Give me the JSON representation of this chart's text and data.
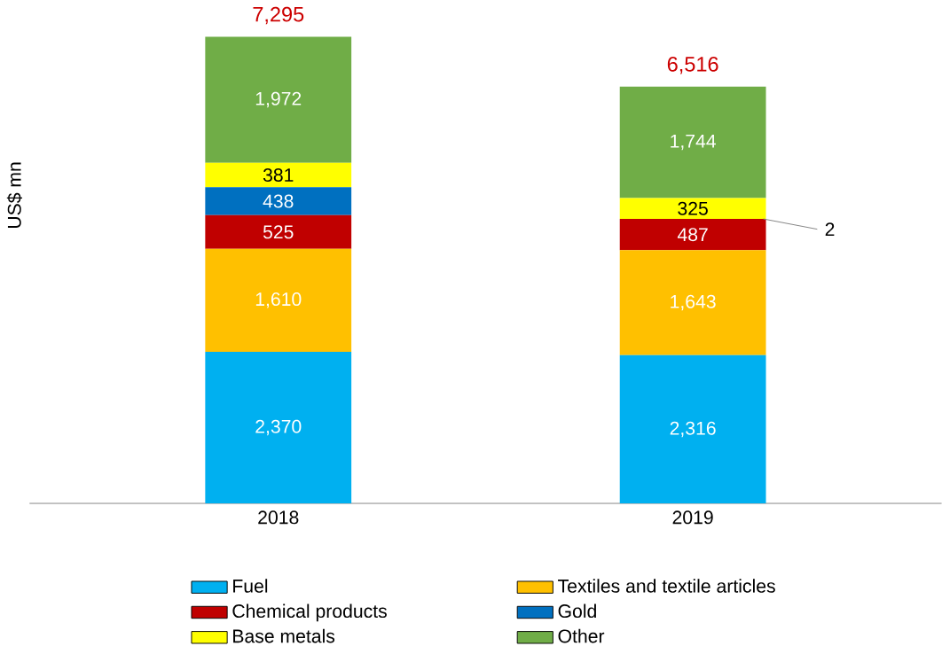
{
  "chart_data": {
    "type": "bar",
    "stacked": true,
    "ylabel": "US$ mn",
    "categories": [
      "2018",
      "2019"
    ],
    "series": [
      {
        "name": "Fuel",
        "color": "#00b0f0",
        "values": [
          2370,
          2316
        ],
        "value_labels": [
          "2,370",
          "2,316"
        ]
      },
      {
        "name": "Textiles and textile articles",
        "color": "#ffc000",
        "values": [
          1610,
          1643
        ],
        "value_labels": [
          "1,610",
          "1,643"
        ]
      },
      {
        "name": "Chemical products",
        "color": "#c00000",
        "values": [
          525,
          487
        ],
        "value_labels": [
          "525",
          "487"
        ]
      },
      {
        "name": "Gold",
        "color": "#0070c0",
        "values": [
          438,
          2
        ],
        "value_labels": [
          "438",
          "2"
        ]
      },
      {
        "name": "Base metals",
        "color": "#ffff00",
        "values": [
          381,
          325
        ],
        "value_labels": [
          "381",
          "325"
        ]
      },
      {
        "name": "Other",
        "color": "#70ad47",
        "values": [
          1972,
          1744
        ],
        "value_labels": [
          "1,972",
          "1,744"
        ]
      }
    ],
    "totals": [
      "7,295",
      "6,516"
    ],
    "legend": "bottom"
  }
}
